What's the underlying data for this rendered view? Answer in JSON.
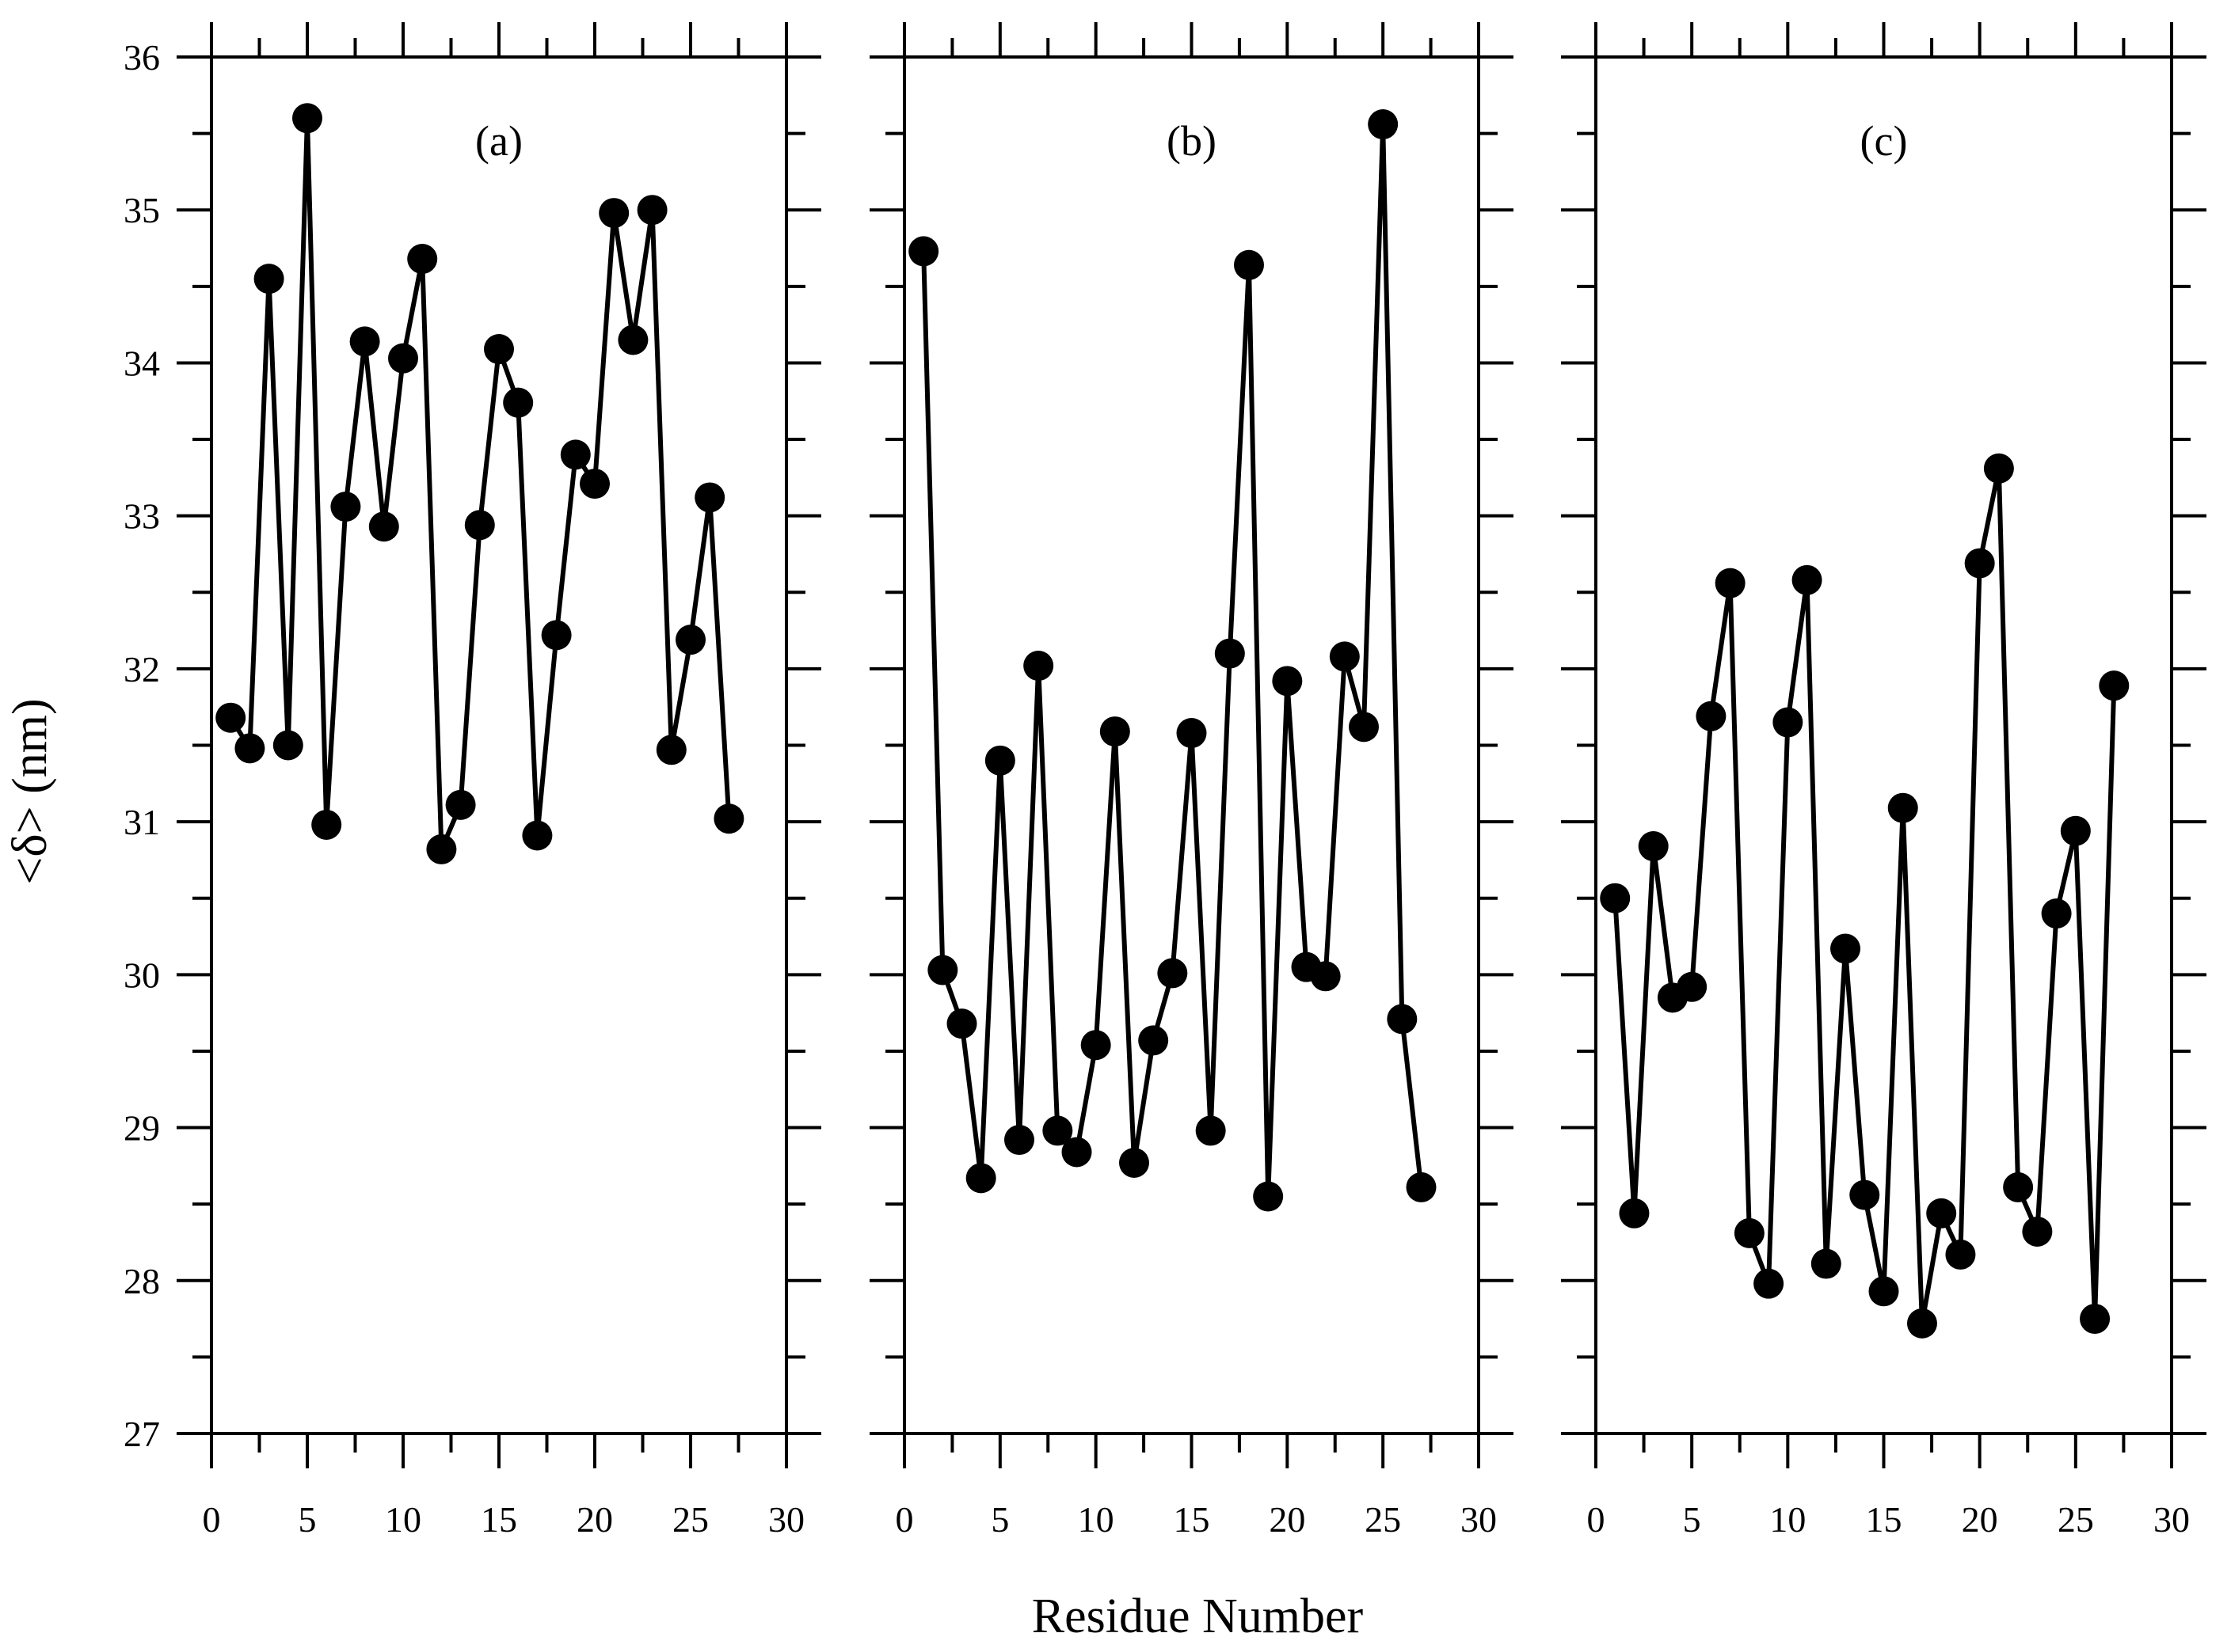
{
  "chart_data": {
    "type": "line",
    "ylabel": "<δ> (nm)",
    "xlabel": "Residue Number",
    "xlim": [
      0,
      30
    ],
    "ylim": [
      27,
      36
    ],
    "x_ticks": [
      "0",
      "5",
      "10",
      "15",
      "20",
      "25",
      "30"
    ],
    "y_ticks": [
      "27",
      "28",
      "29",
      "30",
      "31",
      "32",
      "33",
      "34",
      "35",
      "36"
    ],
    "grid": false,
    "line_color": "#000000",
    "marker": "filled-circle",
    "panels": [
      {
        "label": "(a)",
        "x": [
          1,
          2,
          3,
          4,
          5,
          6,
          7,
          8,
          9,
          10,
          11,
          12,
          13,
          14,
          15,
          16,
          17,
          18,
          19,
          20,
          21,
          22,
          23,
          24,
          25,
          26,
          27
        ],
        "values": [
          31.68,
          31.48,
          34.55,
          31.5,
          35.6,
          30.98,
          33.06,
          34.14,
          32.93,
          34.03,
          34.68,
          30.82,
          31.11,
          32.94,
          34.09,
          33.74,
          30.91,
          32.22,
          33.4,
          33.21,
          34.98,
          34.15,
          35.0,
          31.47,
          32.19,
          33.12,
          31.02
        ]
      },
      {
        "label": "(b)",
        "x": [
          1,
          2,
          3,
          4,
          5,
          6,
          7,
          8,
          9,
          10,
          11,
          12,
          13,
          14,
          15,
          16,
          17,
          18,
          19,
          20,
          21,
          22,
          23,
          24,
          25,
          26,
          27
        ],
        "values": [
          34.73,
          30.03,
          29.68,
          28.67,
          31.4,
          28.92,
          32.02,
          28.98,
          28.84,
          29.54,
          31.59,
          28.77,
          29.57,
          30.01,
          31.58,
          28.98,
          32.1,
          34.64,
          28.55,
          31.92,
          30.05,
          29.99,
          32.08,
          31.62,
          35.56,
          29.71,
          28.61
        ]
      },
      {
        "label": "(c)",
        "x": [
          1,
          2,
          3,
          4,
          5,
          6,
          7,
          8,
          9,
          10,
          11,
          12,
          13,
          14,
          15,
          16,
          17,
          18,
          19,
          20,
          21,
          22,
          23,
          24,
          25,
          26,
          27
        ],
        "values": [
          30.5,
          28.44,
          30.84,
          29.85,
          29.92,
          31.69,
          32.56,
          28.31,
          27.98,
          31.65,
          32.58,
          28.11,
          30.17,
          28.56,
          27.93,
          31.09,
          27.72,
          28.44,
          28.17,
          32.69,
          33.31,
          28.61,
          28.32,
          30.4,
          30.94,
          27.75,
          31.89
        ]
      }
    ]
  }
}
